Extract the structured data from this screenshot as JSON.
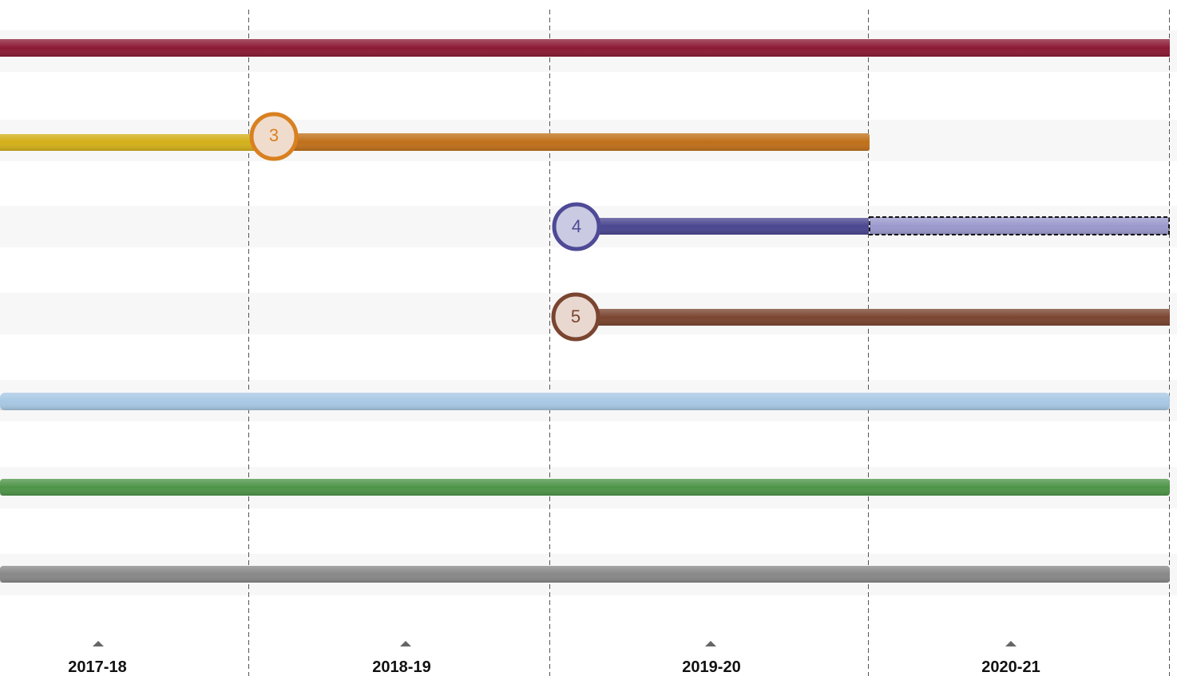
{
  "timeline": {
    "periods": [
      "2017-18",
      "2018-19",
      "2019-20",
      "2020-21"
    ],
    "markers": [
      3,
      4,
      5
    ]
  }
}
